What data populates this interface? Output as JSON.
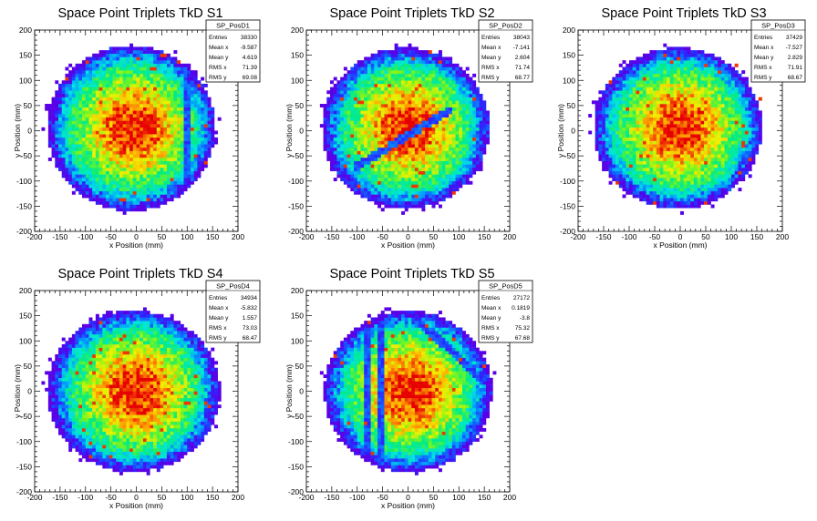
{
  "chart_data": [
    {
      "type": "heatmap",
      "title": "Space Point Triplets TkD S1",
      "xlabel": "x Position (mm)",
      "ylabel": "y Position (mm)",
      "xlim": [
        -200,
        200
      ],
      "ylim": [
        -200,
        200
      ],
      "xticks": [
        -200,
        -150,
        -100,
        -50,
        0,
        50,
        100,
        150,
        200
      ],
      "yticks": [
        -200,
        -150,
        -100,
        -50,
        0,
        50,
        100,
        150,
        200
      ],
      "stats": {
        "name": "SP_PosD1",
        "rows": [
          {
            "label": "Entries",
            "value": "38330"
          },
          {
            "label": "Mean x",
            "value": "-9.587"
          },
          {
            "label": "Mean y",
            "value": "4.619"
          },
          {
            "label": "RMS x",
            "value": "71.39"
          },
          {
            "label": "RMS y",
            "value": "69.08"
          }
        ]
      },
      "shape": {
        "cx": -10,
        "cy": 5,
        "rx": 165,
        "ry": 165
      },
      "features": [
        {
          "kind": "vline",
          "x": 100,
          "w": 8
        }
      ],
      "seed": 11
    },
    {
      "type": "heatmap",
      "title": "Space Point Triplets TkD S2",
      "xlabel": "x Position (mm)",
      "ylabel": "y Position (mm)",
      "xlim": [
        -200,
        200
      ],
      "ylim": [
        -200,
        200
      ],
      "xticks": [
        -200,
        -150,
        -100,
        -50,
        0,
        50,
        100,
        150,
        200
      ],
      "yticks": [
        -200,
        -150,
        -100,
        -50,
        0,
        50,
        100,
        150,
        200
      ],
      "stats": {
        "name": "SP_PosD2",
        "rows": [
          {
            "label": "Entries",
            "value": "38043"
          },
          {
            "label": "Mean x",
            "value": "-7.141"
          },
          {
            "label": "Mean y",
            "value": "2.604"
          },
          {
            "label": "RMS x",
            "value": "71.74"
          },
          {
            "label": "RMS y",
            "value": "68.77"
          }
        ]
      },
      "shape": {
        "cx": -5,
        "cy": 5,
        "rx": 165,
        "ry": 160
      },
      "features": [
        {
          "kind": "dline",
          "x1": -100,
          "y1": -70,
          "x2": 80,
          "y2": 40,
          "w": 8
        }
      ],
      "seed": 23
    },
    {
      "type": "heatmap",
      "title": "Space Point Triplets TkD S3",
      "xlabel": "x Position (mm)",
      "ylabel": "y Position (mm)",
      "xlim": [
        -200,
        200
      ],
      "ylim": [
        -200,
        200
      ],
      "xticks": [
        -200,
        -150,
        -100,
        -50,
        0,
        50,
        100,
        150,
        200
      ],
      "yticks": [
        -200,
        -150,
        -100,
        -50,
        0,
        50,
        100,
        150,
        200
      ],
      "stats": {
        "name": "SP_PosD3",
        "rows": [
          {
            "label": "Entries",
            "value": "37429"
          },
          {
            "label": "Mean x",
            "value": "-7.527"
          },
          {
            "label": "Mean y",
            "value": "2.829"
          },
          {
            "label": "RMS x",
            "value": "71.91"
          },
          {
            "label": "RMS y",
            "value": "68.67"
          }
        ]
      },
      "shape": {
        "cx": -5,
        "cy": 5,
        "rx": 165,
        "ry": 160
      },
      "features": [],
      "seed": 37
    },
    {
      "type": "heatmap",
      "title": "Space Point Triplets TkD S4",
      "xlabel": "x Position (mm)",
      "ylabel": "y Position (mm)",
      "xlim": [
        -200,
        200
      ],
      "ylim": [
        -200,
        200
      ],
      "xticks": [
        -200,
        -150,
        -100,
        -50,
        0,
        50,
        100,
        150,
        200
      ],
      "yticks": [
        -200,
        -150,
        -100,
        -50,
        0,
        50,
        100,
        150,
        200
      ],
      "stats": {
        "name": "SP_PosD4",
        "rows": [
          {
            "label": "Entries",
            "value": "34934"
          },
          {
            "label": "Mean x",
            "value": "-5.832"
          },
          {
            "label": "Mean y",
            "value": "1.557"
          },
          {
            "label": "RMS x",
            "value": "73.03"
          },
          {
            "label": "RMS y",
            "value": "68.47"
          }
        ]
      },
      "shape": {
        "cx": -5,
        "cy": 0,
        "rx": 170,
        "ry": 160
      },
      "features": [],
      "seed": 41
    },
    {
      "type": "heatmap",
      "title": "Space Point Triplets TkD S5",
      "xlabel": "x Position (mm)",
      "ylabel": "y Position (mm)",
      "xlim": [
        -200,
        200
      ],
      "ylim": [
        -200,
        200
      ],
      "xticks": [
        -200,
        -150,
        -100,
        -50,
        0,
        50,
        100,
        150,
        200
      ],
      "yticks": [
        -200,
        -150,
        -100,
        -50,
        0,
        50,
        100,
        150,
        200
      ],
      "stats": {
        "name": "SP_PosD5",
        "rows": [
          {
            "label": "Entries",
            "value": "27172"
          },
          {
            "label": "Mean x",
            "value": "0.1819"
          },
          {
            "label": "Mean y",
            "value": "-3.8"
          },
          {
            "label": "RMS x",
            "value": "75.32"
          },
          {
            "label": "RMS y",
            "value": "67.68"
          }
        ]
      },
      "shape": {
        "cx": 0,
        "cy": 0,
        "rx": 165,
        "ry": 160
      },
      "features": [
        {
          "kind": "vline",
          "x": -80,
          "w": 10
        },
        {
          "kind": "vline",
          "x": -55,
          "w": 8
        },
        {
          "kind": "dline",
          "x1": 10,
          "y1": 150,
          "x2": 150,
          "y2": 20,
          "w": 8
        }
      ],
      "seed": 53
    }
  ]
}
